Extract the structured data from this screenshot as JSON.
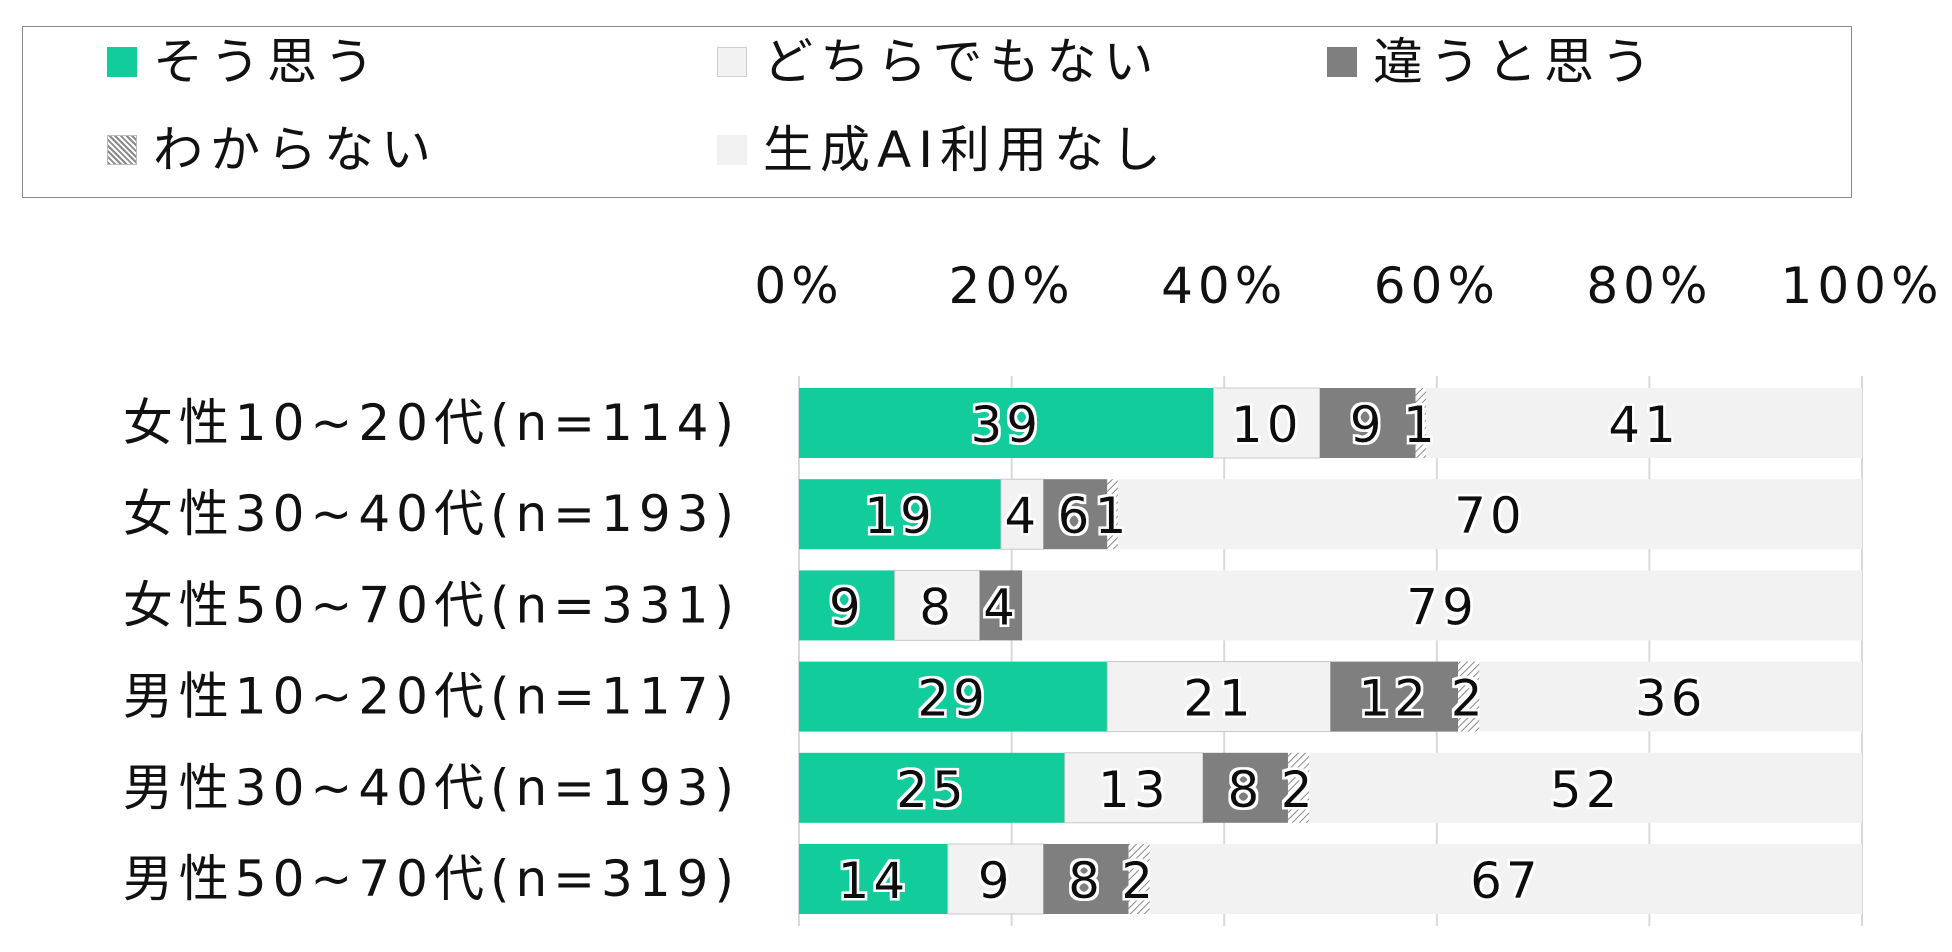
{
  "chart_data": {
    "type": "bar",
    "orientation": "horizontal",
    "stacked": true,
    "percent_stacked": true,
    "xlim": [
      0,
      100
    ],
    "x_ticks": [
      "0%",
      "20%",
      "40%",
      "60%",
      "80%",
      "100%"
    ],
    "x_tick_values": [
      0,
      20,
      40,
      60,
      80,
      100
    ],
    "grid": true,
    "legend_position": "top",
    "categories": [
      "女性10~20代(n=114)",
      "女性30~40代(n=193)",
      "女性50~70代(n=331)",
      "男性10~20代(n=117)",
      "男性30~40代(n=193)",
      "男性50~70代(n=319)"
    ],
    "series": [
      {
        "name": "そう思う",
        "color": "#13cc9c",
        "fill": "solid",
        "values": [
          39,
          19,
          9,
          29,
          25,
          14
        ]
      },
      {
        "name": "どちらでもない",
        "color": "#f2f2f2",
        "fill": "outline",
        "values": [
          10,
          4,
          8,
          21,
          13,
          9
        ]
      },
      {
        "name": "違うと思う",
        "color": "#7f7f7f",
        "fill": "solid",
        "values": [
          9,
          6,
          4,
          12,
          8,
          8
        ]
      },
      {
        "name": "わからない",
        "color": "#bfbfbf",
        "fill": "hatched",
        "values": [
          1,
          1,
          0,
          2,
          2,
          2
        ]
      },
      {
        "name": "生成AI利用なし",
        "color": "#f2f2f2",
        "fill": "solid",
        "values": [
          41,
          70,
          79,
          36,
          52,
          67
        ]
      }
    ],
    "data_labels": [
      [
        "39",
        "10",
        "9",
        "1",
        "41"
      ],
      [
        "19",
        "4",
        "6",
        "1",
        "70"
      ],
      [
        "9",
        "8",
        "4",
        "",
        "79"
      ],
      [
        "29",
        "21",
        "12",
        "2",
        "36"
      ],
      [
        "25",
        "13",
        "8",
        "2",
        "52"
      ],
      [
        "14",
        "9",
        "8",
        "2",
        "67"
      ]
    ]
  }
}
